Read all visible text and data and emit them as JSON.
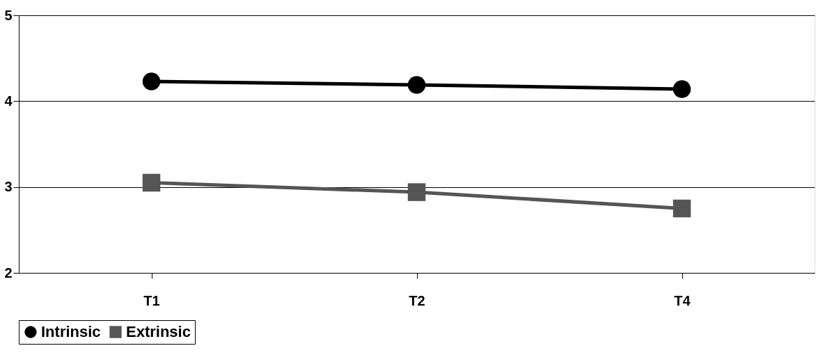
{
  "chart_data": {
    "type": "line",
    "categories": [
      "T1",
      "T2",
      "T4"
    ],
    "series": [
      {
        "name": "Intrinsic",
        "color": "#000000",
        "marker": "circle",
        "values": [
          4.23,
          4.19,
          4.14
        ]
      },
      {
        "name": "Extrinsic",
        "color": "#555555",
        "marker": "square",
        "values": [
          3.05,
          2.94,
          2.75
        ]
      }
    ],
    "ylim": [
      2,
      5
    ],
    "yticks": [
      2,
      3,
      4,
      5
    ],
    "grid": "y",
    "legend": "bottom",
    "line_style": "solid"
  }
}
